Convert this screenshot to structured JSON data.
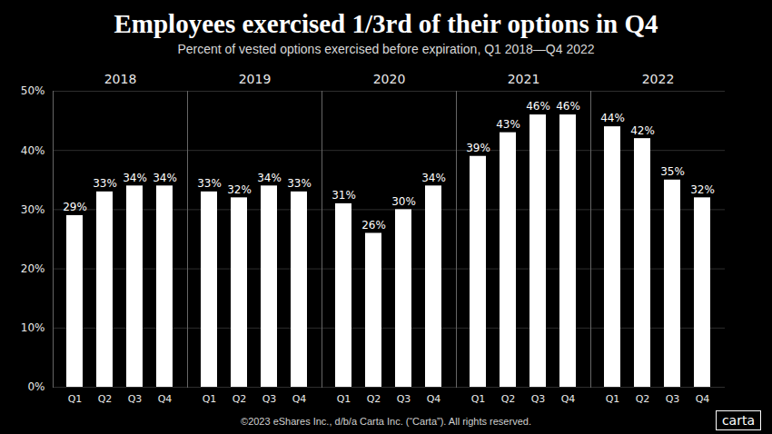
{
  "chart_data": {
    "type": "bar",
    "title": "Employees exercised 1/3rd of their options in Q4",
    "subtitle": "Percent of vested options exercised before expiration, Q1 2018—Q4 2022",
    "categories": [
      "Q1",
      "Q2",
      "Q3",
      "Q4"
    ],
    "series": [
      {
        "name": "2018",
        "values": [
          29,
          33,
          34,
          34
        ],
        "value_labels": [
          "29%",
          "33%",
          "34%",
          "34%"
        ]
      },
      {
        "name": "2019",
        "values": [
          33,
          32,
          34,
          33
        ],
        "value_labels": [
          "33%",
          "32%",
          "34%",
          "33%"
        ]
      },
      {
        "name": "2020",
        "values": [
          31,
          26,
          30,
          34
        ],
        "value_labels": [
          "31%",
          "26%",
          "30%",
          "34%"
        ]
      },
      {
        "name": "2021",
        "values": [
          39,
          43,
          46,
          46
        ],
        "value_labels": [
          "39%",
          "43%",
          "46%",
          "46%"
        ]
      },
      {
        "name": "2022",
        "values": [
          44,
          42,
          35,
          32
        ],
        "value_labels": [
          "44%",
          "42%",
          "35%",
          "32%"
        ]
      }
    ],
    "color": "#ffffff",
    "ylim": [
      0,
      50
    ],
    "yticks": [
      {
        "value": 0,
        "label": "0%"
      },
      {
        "value": 10,
        "label": "10%"
      },
      {
        "value": 20,
        "label": "20%"
      },
      {
        "value": 30,
        "label": "30%"
      },
      {
        "value": 40,
        "label": "40%"
      },
      {
        "value": 50,
        "label": "50%"
      }
    ],
    "grid": true,
    "data_labels": true,
    "footnote": "©2023 eShares Inc., d/b/a Carta Inc. (“Carta”). All rights reserved.",
    "logo": "carta"
  }
}
